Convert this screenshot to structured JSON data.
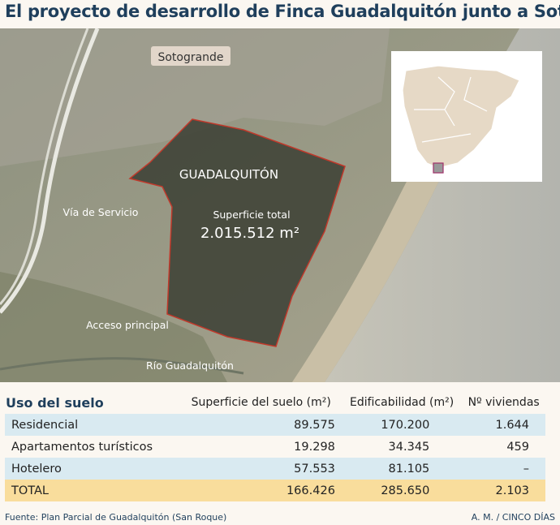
{
  "title": "El proyecto de desarrollo de Finca Guadalquitón junto a Sotogrande",
  "map": {
    "sotogrande": "Sotogrande",
    "area_name": "GUADALQUITÓN",
    "surface_label": "Superficie total",
    "surface_value": "2.015.512 m²",
    "service_road": "Vía de Servicio",
    "main_access": "Acceso principal",
    "river": "Río Guadalquitón"
  },
  "table": {
    "headers": [
      "Uso del suelo",
      "Superficie del suelo (m²)",
      "Edificabilidad (m²)",
      "Nº viviendas"
    ],
    "rows": [
      [
        "Residencial",
        "89.575",
        "170.200",
        "1.644"
      ],
      [
        "Apartamentos turísticos",
        "19.298",
        "34.345",
        "459"
      ],
      [
        "Hotelero",
        "57.553",
        "81.105",
        "–"
      ],
      [
        "TOTAL",
        "166.426",
        "285.650",
        "2.103"
      ]
    ]
  },
  "footer": {
    "source": "Fuente: Plan Parcial de Guadalquitón (San Roque)",
    "credit": "A. M. / CINCO DÍAS"
  }
}
